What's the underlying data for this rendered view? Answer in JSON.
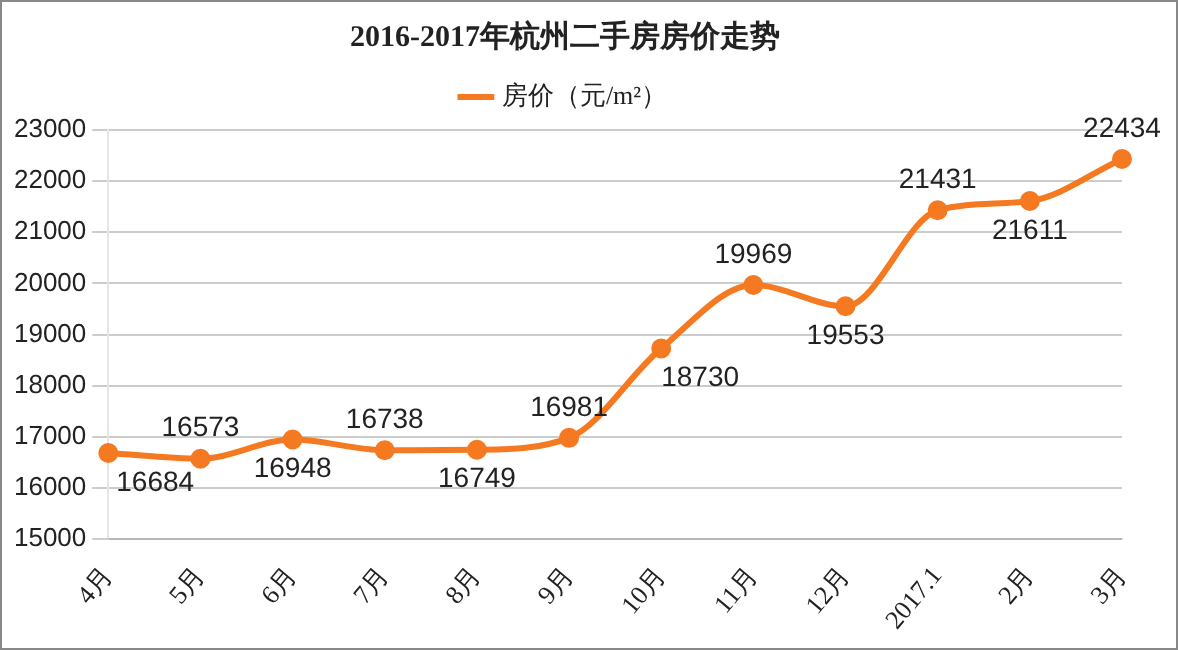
{
  "chart_data": {
    "type": "line",
    "title": "2016-2017年杭州二手房房价走势",
    "categories": [
      "4月",
      "5月",
      "6月",
      "7月",
      "8月",
      "9月",
      "10月",
      "11月",
      "12月",
      "2017.1",
      "2月",
      "3月"
    ],
    "series": [
      {
        "name": "房价（元/m²）",
        "color": "#f47920",
        "values": [
          16684,
          16573,
          16948,
          16738,
          16749,
          16981,
          18730,
          19969,
          19553,
          21431,
          21611,
          22434
        ]
      }
    ],
    "ylim": [
      15000,
      23000
    ],
    "yticks": [
      15000,
      16000,
      17000,
      18000,
      19000,
      20000,
      21000,
      22000,
      23000
    ],
    "grid": "y",
    "legend": "top",
    "marker": "circle",
    "line_style": "solid",
    "data_labels": true
  }
}
